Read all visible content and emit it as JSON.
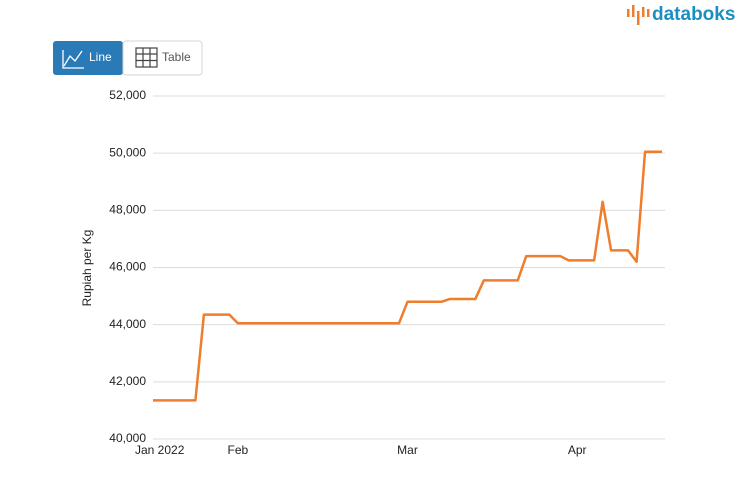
{
  "ui": {
    "logo": "databoks",
    "buttons": [
      "Line",
      "Table"
    ]
  },
  "chart_data": {
    "type": "line",
    "y_label": "Rupiah per Kg",
    "categories": [
      "Jan 2022",
      null,
      null,
      null,
      null,
      null,
      null,
      null,
      null,
      null,
      "Feb",
      null,
      null,
      null,
      null,
      null,
      null,
      null,
      null,
      null,
      null,
      null,
      null,
      null,
      null,
      null,
      null,
      null,
      null,
      null,
      "Mar",
      null,
      null,
      null,
      null,
      null,
      null,
      null,
      null,
      null,
      null,
      null,
      null,
      null,
      null,
      null,
      null,
      null,
      null,
      null,
      "Apr",
      null,
      null,
      null,
      null,
      null,
      null,
      null,
      null,
      null,
      null
    ],
    "series": [
      {
        "name": "Rupiah per Kg",
        "color": "#ef7d2e",
        "values": [
          41350,
          41350,
          41350,
          41350,
          41350,
          41350,
          44350,
          44350,
          44350,
          44350,
          44050,
          44050,
          44050,
          44050,
          44050,
          44050,
          44050,
          44050,
          44050,
          44050,
          44050,
          44050,
          44050,
          44050,
          44050,
          44050,
          44050,
          44050,
          44050,
          44050,
          44800,
          44800,
          44800,
          44800,
          44800,
          44900,
          44900,
          44900,
          44900,
          45550,
          45550,
          45550,
          45550,
          45550,
          46400,
          46400,
          46400,
          46400,
          46400,
          46250,
          46250,
          46250,
          46250,
          48300,
          46600,
          46600,
          46600,
          46200,
          50050,
          50050,
          50050
        ]
      }
    ],
    "ylim": [
      40000,
      52000
    ],
    "yticks": [
      {
        "value": 40000,
        "label": "40,000"
      },
      {
        "value": 42000,
        "label": "42,000"
      },
      {
        "value": 44000,
        "label": "44,000"
      },
      {
        "value": 46000,
        "label": "46,000"
      },
      {
        "value": 48000,
        "label": "48,000"
      },
      {
        "value": 50000,
        "label": "50,000"
      },
      {
        "value": 52000,
        "label": "52,000"
      }
    ],
    "grid": true
  }
}
